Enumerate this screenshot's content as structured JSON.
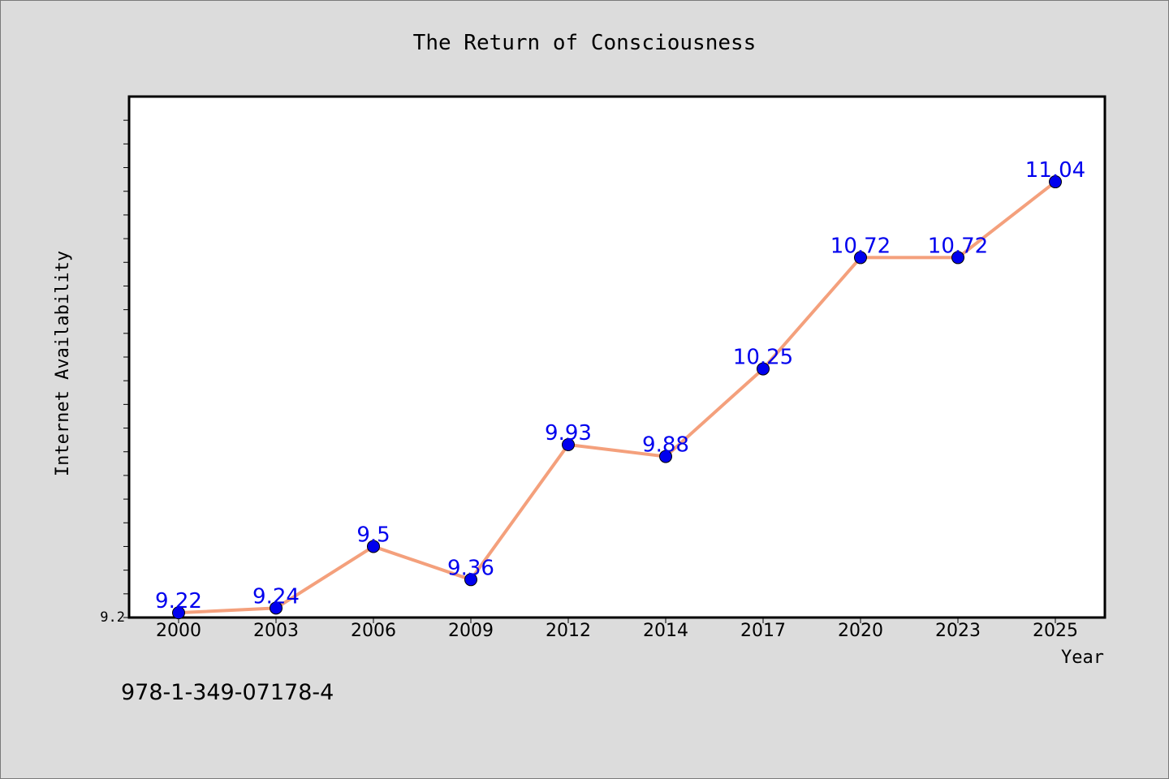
{
  "chart_data": {
    "type": "line",
    "title": "The Return of Consciousness",
    "xlabel": "Year",
    "ylabel": "Internet Availability",
    "categories": [
      "2000",
      "2003",
      "2006",
      "2009",
      "2012",
      "2014",
      "2017",
      "2020",
      "2023",
      "2025"
    ],
    "values": [
      9.22,
      9.24,
      9.5,
      9.36,
      9.93,
      9.88,
      10.25,
      10.72,
      10.72,
      11.04
    ],
    "data_labels": [
      "9.22",
      "9.24",
      "9.5",
      "9.36",
      "9.93",
      "9.88",
      "10.25",
      "10.72",
      "10.72",
      "11.04"
    ],
    "ylim": [
      9.2,
      11.4
    ],
    "y_tick_labels": [
      "9.2"
    ],
    "grid": false,
    "legend": "none",
    "colors": {
      "line": "#f4a07c",
      "marker": "#0000ee",
      "data_label": "#0000ee",
      "plot_background": "#ffffff",
      "figure_background": "#dcdcdc"
    }
  },
  "annotations": {
    "isbn": "978-1-349-07178-4"
  }
}
